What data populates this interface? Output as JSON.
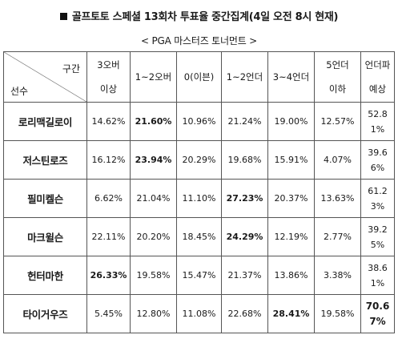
{
  "title": "골프토토 스페셜 13회차 투표율 중간집계(4일 오전 8시 현재)",
  "subtitle": "< PGA 마스터즈 토너먼트 >",
  "header": {
    "corner_top": "구간",
    "corner_bottom": "선수",
    "columns": [
      {
        "line1": "3오버",
        "line2": "이상"
      },
      {
        "line1": "1~2오버",
        "line2": ""
      },
      {
        "line1": "0(이븐)",
        "line2": ""
      },
      {
        "line1": "1~2언더",
        "line2": ""
      },
      {
        "line1": "3~4언더",
        "line2": ""
      },
      {
        "line1": "5언더",
        "line2": "이하"
      },
      {
        "line1": "언더파",
        "line2": "예상"
      }
    ]
  },
  "rows": [
    {
      "player": "로리맥길로이",
      "values": [
        "14.62%",
        "21.60%",
        "10.96%",
        "21.24%",
        "19.00%",
        "12.57%",
        "52.81%"
      ],
      "bold_index": 1,
      "last_bold": false
    },
    {
      "player": "저스틴로즈",
      "values": [
        "16.12%",
        "23.94%",
        "20.29%",
        "19.68%",
        "15.91%",
        "4.07%",
        "39.66%"
      ],
      "bold_index": 1,
      "last_bold": false
    },
    {
      "player": "필미켈슨",
      "values": [
        "6.62%",
        "21.04%",
        "11.10%",
        "27.23%",
        "20.37%",
        "13.63%",
        "61.23%"
      ],
      "bold_index": 3,
      "last_bold": false
    },
    {
      "player": "마크윌슨",
      "values": [
        "22.11%",
        "20.20%",
        "18.45%",
        "24.29%",
        "12.19%",
        "2.77%",
        "39.25%"
      ],
      "bold_index": 3,
      "last_bold": false
    },
    {
      "player": "헌터마한",
      "values": [
        "26.33%",
        "19.58%",
        "15.47%",
        "21.37%",
        "13.86%",
        "3.38%",
        "38.61%"
      ],
      "bold_index": 0,
      "last_bold": false
    },
    {
      "player": "타이거우즈",
      "values": [
        "5.45%",
        "12.80%",
        "11.08%",
        "22.68%",
        "28.41%",
        "19.58%",
        "70.67%"
      ],
      "bold_index": 4,
      "last_bold": true
    }
  ]
}
